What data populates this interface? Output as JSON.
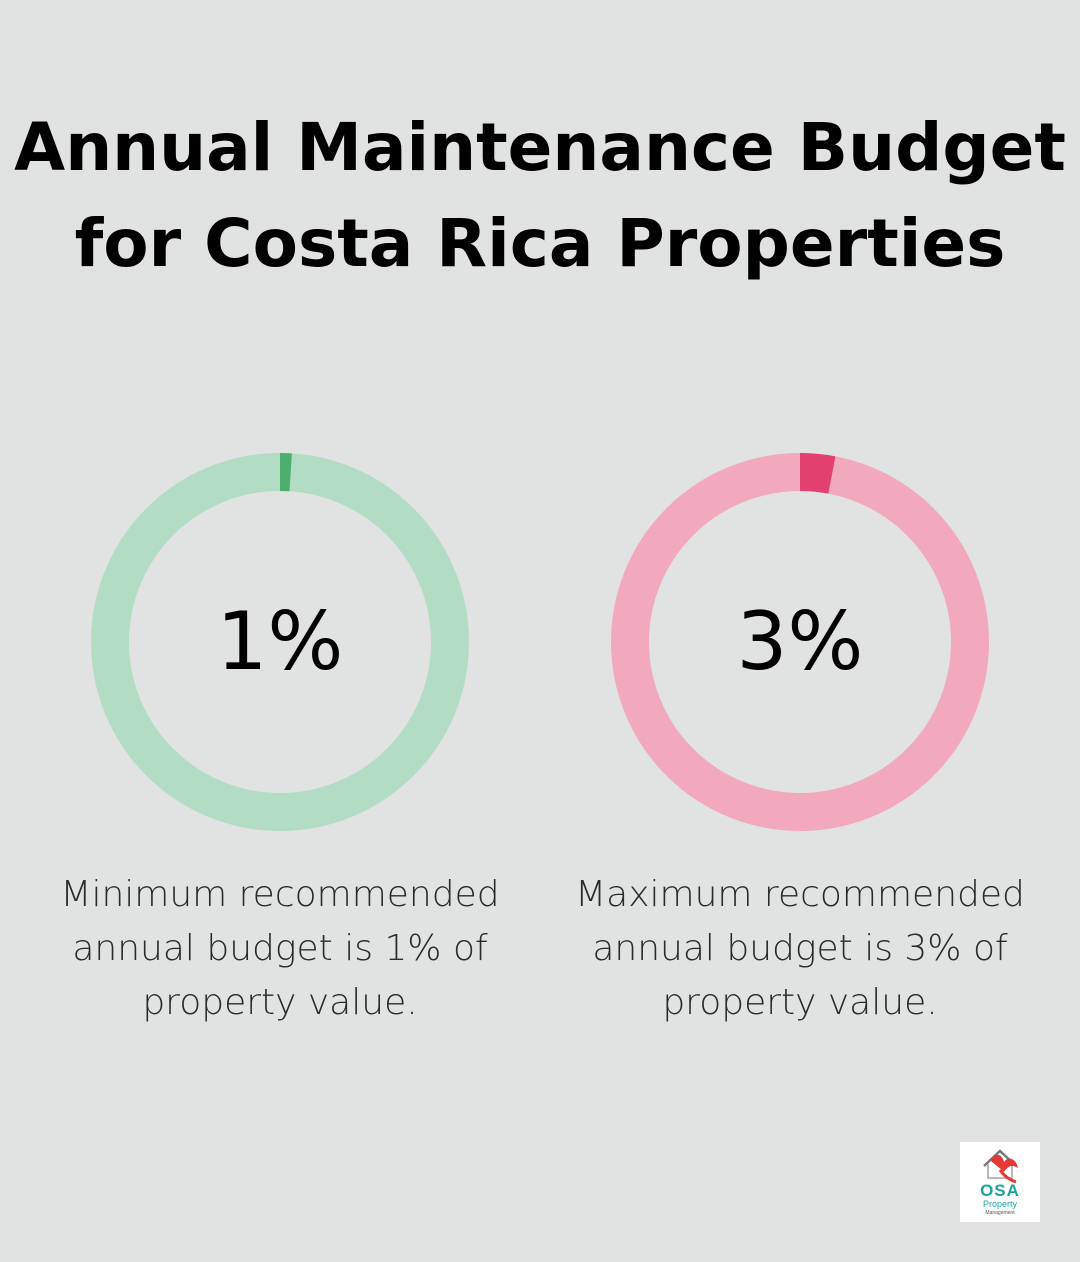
{
  "header": {
    "title": "Annual Maintenance Budget for Costa Rica Properties"
  },
  "chart_data": [
    {
      "type": "pie",
      "variant": "donut",
      "value": 1,
      "value_label": "1%",
      "max": 100,
      "caption": "Minimum recommended annual budget is 1% of property value.",
      "colors": {
        "filled": "#4caf6e",
        "track": "#b2dcc3"
      }
    },
    {
      "type": "pie",
      "variant": "donut",
      "value": 3,
      "value_label": "3%",
      "max": 100,
      "caption": "Maximum recommended annual budget is 3% of property value.",
      "colors": {
        "filled": "#e2406e",
        "track": "#f2a8bd"
      }
    }
  ],
  "logo": {
    "name": "OSA",
    "line1": "Property",
    "line2": "Management",
    "icon": "house-bird-icon"
  }
}
